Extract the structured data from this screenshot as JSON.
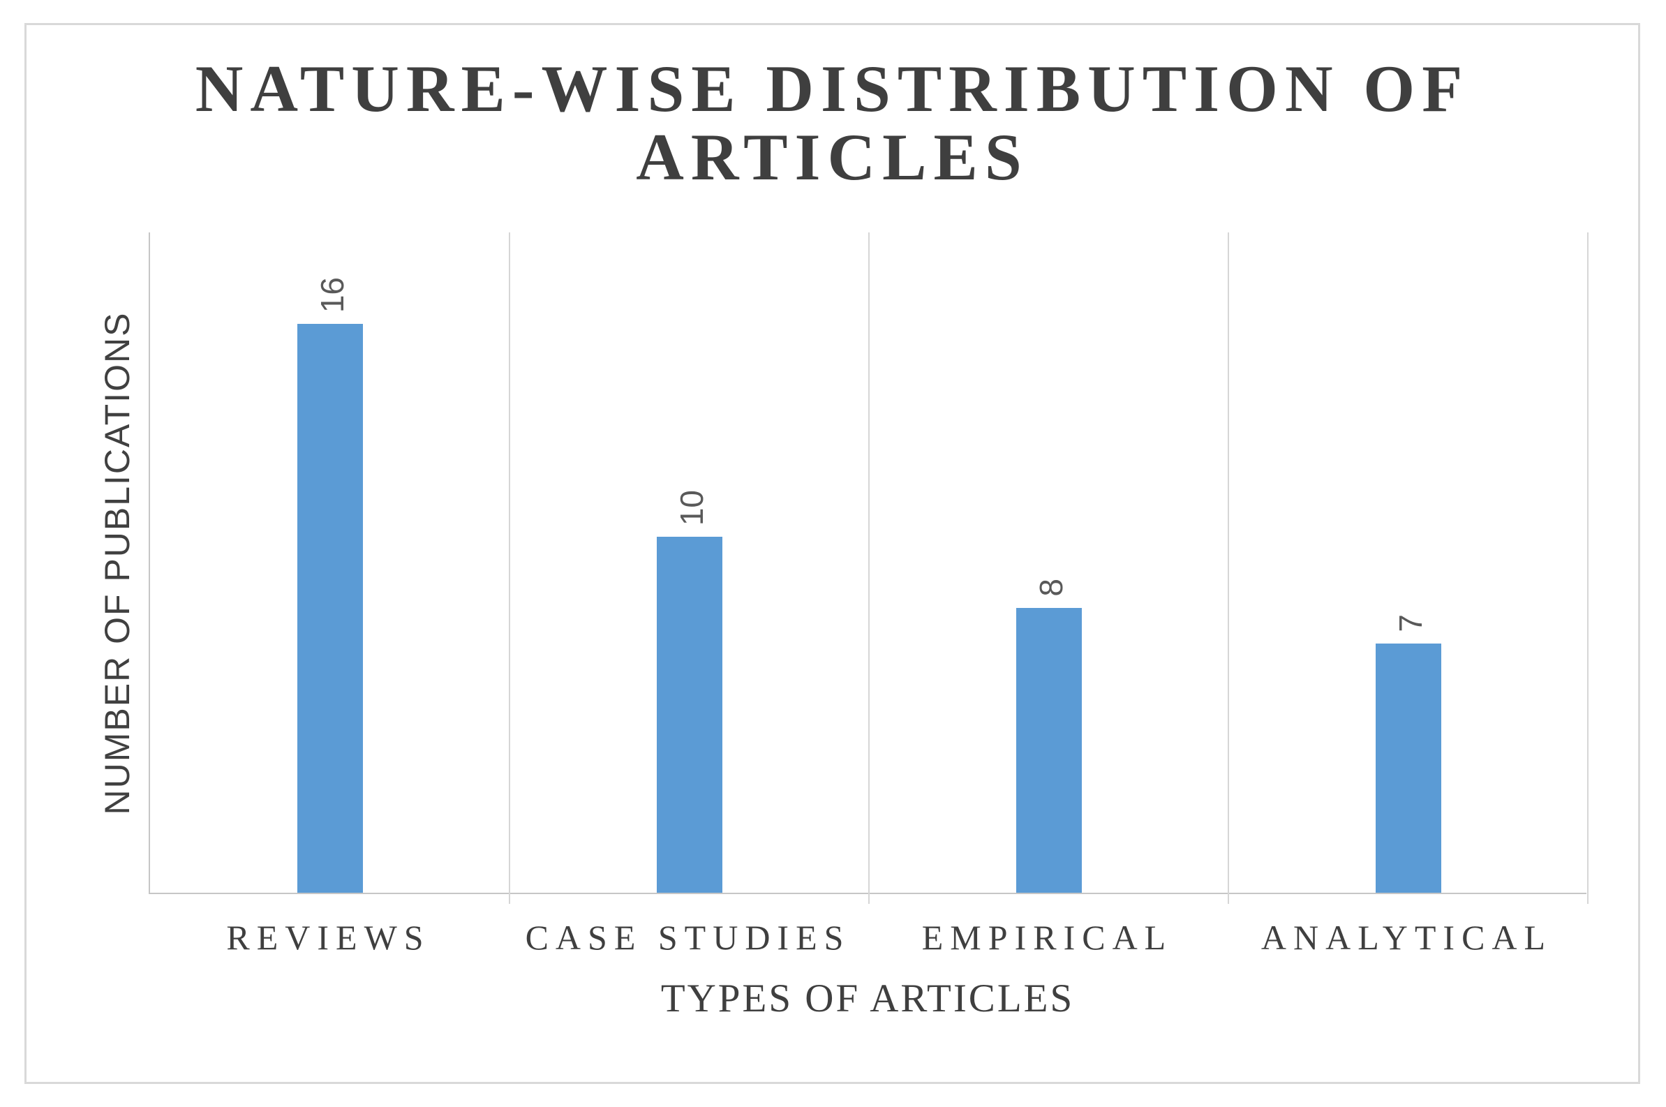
{
  "chart": {
    "title_lines": [
      "NATURE-WISE DISTRIBUTION OF",
      "ARTICLES"
    ]
  },
  "chart_data": {
    "type": "bar",
    "title": "NATURE-WISE DISTRIBUTION OF ARTICLES",
    "categories": [
      "REVIEWS",
      "CASE STUDIES",
      "EMPIRICAL",
      "ANALYTICAL"
    ],
    "values": [
      16,
      10,
      8,
      7
    ],
    "data_labels": [
      "16",
      "10",
      "8",
      "7"
    ],
    "xlabel": "TYPES OF ARTICLES",
    "ylabel": "NUMBER OF PUBLICATIONS",
    "ylim": [
      0,
      18.6
    ],
    "y_tick_labels_visible": false,
    "grid": "vertical-category-separators",
    "legend": "none",
    "data_label_rotation_deg": -90,
    "bar_color": "#5B9BD5",
    "data_label_color": "#595959",
    "axis_line_color": "#c6c6c6",
    "gridline_color": "#d6d6d6",
    "frame_border_color": "#d9d9d9",
    "text_color": "#3f3f3f"
  }
}
